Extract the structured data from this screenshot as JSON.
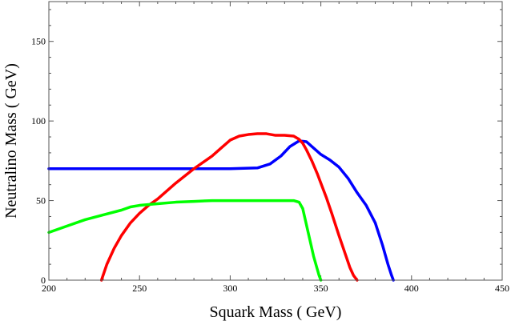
{
  "chart_data": {
    "type": "line",
    "title": "",
    "xlabel": "Squark Mass ( GeV)",
    "ylabel": "Neutralino Mass ( GeV)",
    "xlim": [
      200,
      450
    ],
    "ylim": [
      0,
      175
    ],
    "x_ticks": [
      200,
      250,
      300,
      350,
      400,
      450
    ],
    "y_ticks": [
      0,
      50,
      100,
      150
    ],
    "x_minor_step": 10,
    "y_minor_step": 10,
    "grid": false,
    "legend": "none",
    "series": [
      {
        "color": "#0000ff",
        "x": [
          200,
          250,
          300,
          315,
          322,
          328,
          333,
          338,
          342,
          346,
          350,
          355,
          360,
          365,
          370,
          375,
          380,
          384,
          387,
          389,
          390
        ],
        "y": [
          70,
          70,
          70,
          70.5,
          73,
          78,
          84,
          87.5,
          87,
          83,
          79,
          75.5,
          71,
          64,
          55,
          47,
          36,
          22,
          10,
          3,
          0
        ]
      },
      {
        "color": "#ff0000",
        "x": [
          229,
          232,
          236,
          240,
          245,
          250,
          255,
          260,
          270,
          280,
          290,
          295,
          300,
          305,
          310,
          315,
          320,
          325,
          330,
          335,
          338,
          340,
          342,
          345,
          348,
          350,
          353,
          356,
          360,
          363,
          366,
          368,
          370
        ],
        "y": [
          0,
          10,
          20,
          28,
          36,
          42,
          47,
          51,
          61,
          70,
          78,
          83,
          88,
          90.5,
          91.5,
          92,
          92,
          91,
          91,
          90.5,
          88.5,
          86,
          82,
          75,
          67,
          61,
          52,
          42,
          28,
          18,
          8,
          3,
          0
        ]
      },
      {
        "color": "#00ff00",
        "x": [
          200,
          210,
          220,
          230,
          240,
          245,
          250,
          255,
          260,
          270,
          280,
          290,
          300,
          310,
          320,
          330,
          335,
          338,
          340,
          342,
          344,
          346,
          348,
          349,
          350
        ],
        "y": [
          30,
          34,
          38,
          41,
          44,
          46,
          47,
          47.5,
          48,
          49,
          49.5,
          50,
          50,
          50,
          50,
          50,
          50,
          49,
          45,
          35,
          25,
          15,
          7,
          3,
          0
        ]
      }
    ]
  }
}
